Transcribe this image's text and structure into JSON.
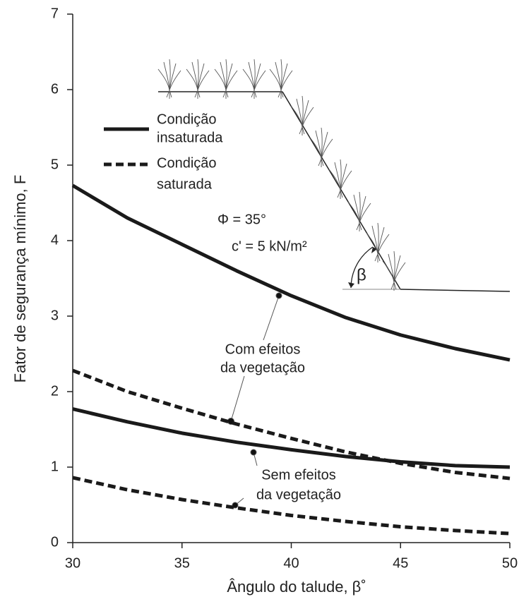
{
  "chart_data": {
    "type": "line",
    "xlabel": "Ângulo do talude, β˚",
    "ylabel": "Fator de segurança mínimo, F",
    "x": [
      30,
      32.5,
      35,
      37.5,
      40,
      42.5,
      45,
      47.5,
      50
    ],
    "series": [
      {
        "style": "solid",
        "color": "#1a1a1a",
        "values": [
          4.73,
          4.3,
          3.95,
          3.6,
          3.27,
          2.98,
          2.75,
          2.57,
          2.42
        ]
      },
      {
        "style": "dashed",
        "color": "#1a1a1a",
        "values": [
          2.28,
          2.0,
          1.78,
          1.57,
          1.38,
          1.2,
          1.05,
          0.93,
          0.85
        ]
      },
      {
        "style": "solid",
        "color": "#1a1a1a",
        "values": [
          1.77,
          1.6,
          1.45,
          1.33,
          1.23,
          1.14,
          1.07,
          1.02,
          1.0
        ]
      },
      {
        "style": "dashed",
        "color": "#1a1a1a",
        "values": [
          0.86,
          0.7,
          0.57,
          0.46,
          0.36,
          0.28,
          0.21,
          0.16,
          0.12
        ]
      }
    ],
    "legend": [
      {
        "style": "solid",
        "lines": [
          "Condição",
          "insaturada"
        ]
      },
      {
        "style": "dashed",
        "lines": [
          "Condição",
          "saturada"
        ]
      }
    ],
    "annotations": {
      "with_vegetation": [
        "Com efeitos",
        "da vegetação"
      ],
      "without_vegetation": [
        "Sem efeitos",
        "da vegetação"
      ],
      "phi": "Φ = 35°",
      "cohesion": "c' = 5 kN/m²",
      "beta": "β"
    },
    "xlim": [
      30,
      50
    ],
    "xticks": [
      30,
      35,
      40,
      45,
      50
    ],
    "ylim": [
      0,
      7
    ],
    "yticks": [
      0,
      1,
      2,
      3,
      4,
      5,
      6,
      7
    ],
    "grid": false
  }
}
